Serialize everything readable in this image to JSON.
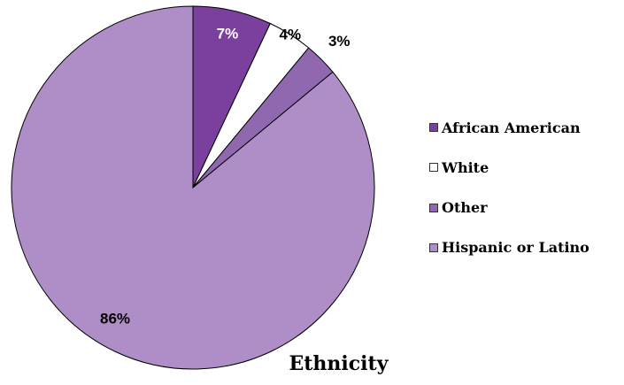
{
  "chart_data": {
    "type": "pie",
    "title": "Ethnicity",
    "slices": [
      {
        "label": "African American",
        "value": 7,
        "display": "7%",
        "color": "#7b3f9e",
        "label_color": "#ffffff"
      },
      {
        "label": "White",
        "value": 4,
        "display": "4%",
        "color": "#ffffff",
        "label_color": "#000000"
      },
      {
        "label": "Other",
        "value": 3,
        "display": "3%",
        "color": "#9068b0",
        "label_color": "#000000"
      },
      {
        "label": "Hispanic or Latino",
        "value": 86,
        "display": "86%",
        "color": "#af8dc6",
        "label_color": "#000000"
      }
    ],
    "legend_position": "right",
    "start_angle": "12 o'clock",
    "direction": "clockwise"
  }
}
